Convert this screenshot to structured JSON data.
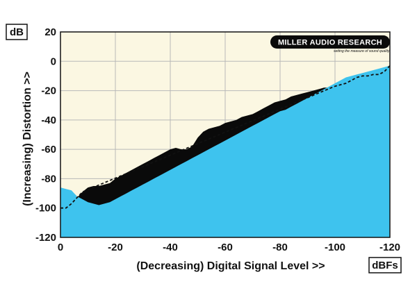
{
  "chart_data": {
    "type": "area",
    "title": "",
    "xlabel": "(Decreasing) Digital Signal Level >>",
    "ylabel": "(Increasing) Distortion >>",
    "y_unit": "dB",
    "x_unit": "dBFs",
    "xlim": [
      0,
      -120
    ],
    "ylim": [
      -120,
      20
    ],
    "x_ticks": [
      0,
      -20,
      -40,
      -60,
      -80,
      -100,
      -120
    ],
    "y_ticks": [
      20,
      0,
      -20,
      -40,
      -60,
      -80,
      -100,
      -120
    ],
    "grid": true,
    "logo": {
      "name": "MILLER AUDIO RESEARCH",
      "tagline": "setting the measure of sound quality"
    },
    "colors": {
      "background": "#fbf7e2",
      "signal_area": "#3ec3ee",
      "distortion_band": "#0a0a0a",
      "grid": "#b8b8b8"
    },
    "series": [
      {
        "label_hint": "upper distortion boundary",
        "x": [
          0,
          -2,
          -4,
          -6,
          -8,
          -10,
          -12,
          -14,
          -16,
          -18,
          -20,
          -22,
          -24,
          -26,
          -28,
          -30,
          -32,
          -34,
          -36,
          -38,
          -40,
          -42,
          -44,
          -46,
          -48,
          -50,
          -52,
          -54,
          -56,
          -58,
          -60,
          -62,
          -64,
          -66,
          -68,
          -70,
          -72,
          -74,
          -76,
          -78,
          -80,
          -82,
          -84,
          -86,
          -88,
          -90,
          -92,
          -94,
          -96,
          -98,
          -100,
          -102,
          -104,
          -106,
          -108,
          -110,
          -112,
          -114,
          -116,
          -118,
          -120
        ],
        "values": [
          -100,
          -99,
          -97,
          -93,
          -89,
          -86,
          -85,
          -85,
          -84,
          -83,
          -80,
          -78,
          -76,
          -74,
          -72,
          -70,
          -68,
          -66,
          -64,
          -62,
          -60,
          -59,
          -60,
          -60,
          -58,
          -52,
          -48,
          -46,
          -45,
          -44,
          -42,
          -41,
          -40,
          -38,
          -37,
          -36,
          -34,
          -32,
          -30,
          -28,
          -27,
          -26,
          -24,
          -23,
          -22,
          -21,
          -20,
          -19,
          -18,
          -18,
          -17,
          -16,
          -15,
          -14,
          -12,
          -10,
          -8,
          -7,
          -6,
          -5,
          -4
        ]
      },
      {
        "label_hint": "signal floor",
        "x": [
          0,
          -2,
          -4,
          -6,
          -8,
          -10,
          -12,
          -14,
          -16,
          -18,
          -20,
          -22,
          -24,
          -26,
          -28,
          -30,
          -32,
          -34,
          -36,
          -38,
          -40,
          -42,
          -44,
          -46,
          -48,
          -50,
          -52,
          -54,
          -56,
          -58,
          -60,
          -62,
          -64,
          -66,
          -68,
          -70,
          -72,
          -74,
          -76,
          -78,
          -80,
          -82,
          -84,
          -86,
          -88,
          -90,
          -92,
          -94,
          -96,
          -98,
          -100,
          -102,
          -104,
          -106,
          -108,
          -110,
          -112,
          -114,
          -116,
          -118,
          -120
        ],
        "values": [
          -86,
          -87,
          -88,
          -92,
          -94,
          -96,
          -97,
          -98,
          -97,
          -96,
          -94,
          -92,
          -90,
          -88,
          -86,
          -84,
          -82,
          -80,
          -78,
          -76,
          -74,
          -72,
          -70,
          -68,
          -66,
          -64,
          -62,
          -60,
          -58,
          -56,
          -54,
          -52,
          -50,
          -48,
          -46,
          -44,
          -42,
          -40,
          -38,
          -36,
          -34,
          -33,
          -31,
          -29,
          -27,
          -25,
          -23,
          -21,
          -19,
          -17,
          -15,
          -13,
          -11,
          -10,
          -9,
          -8,
          -7,
          -6,
          -5,
          -4,
          -3
        ]
      },
      {
        "label_hint": "dashed limit",
        "style": "dashed",
        "x": [
          0,
          -2,
          -4,
          -6,
          -8,
          -100,
          -104,
          -108,
          -110,
          -112,
          -114,
          -116,
          -118,
          -120
        ],
        "values": [
          -100,
          -100,
          -97,
          -93,
          -89,
          -17,
          -15,
          -11,
          -10,
          -10,
          -9,
          -9,
          -7,
          -3
        ]
      }
    ]
  }
}
